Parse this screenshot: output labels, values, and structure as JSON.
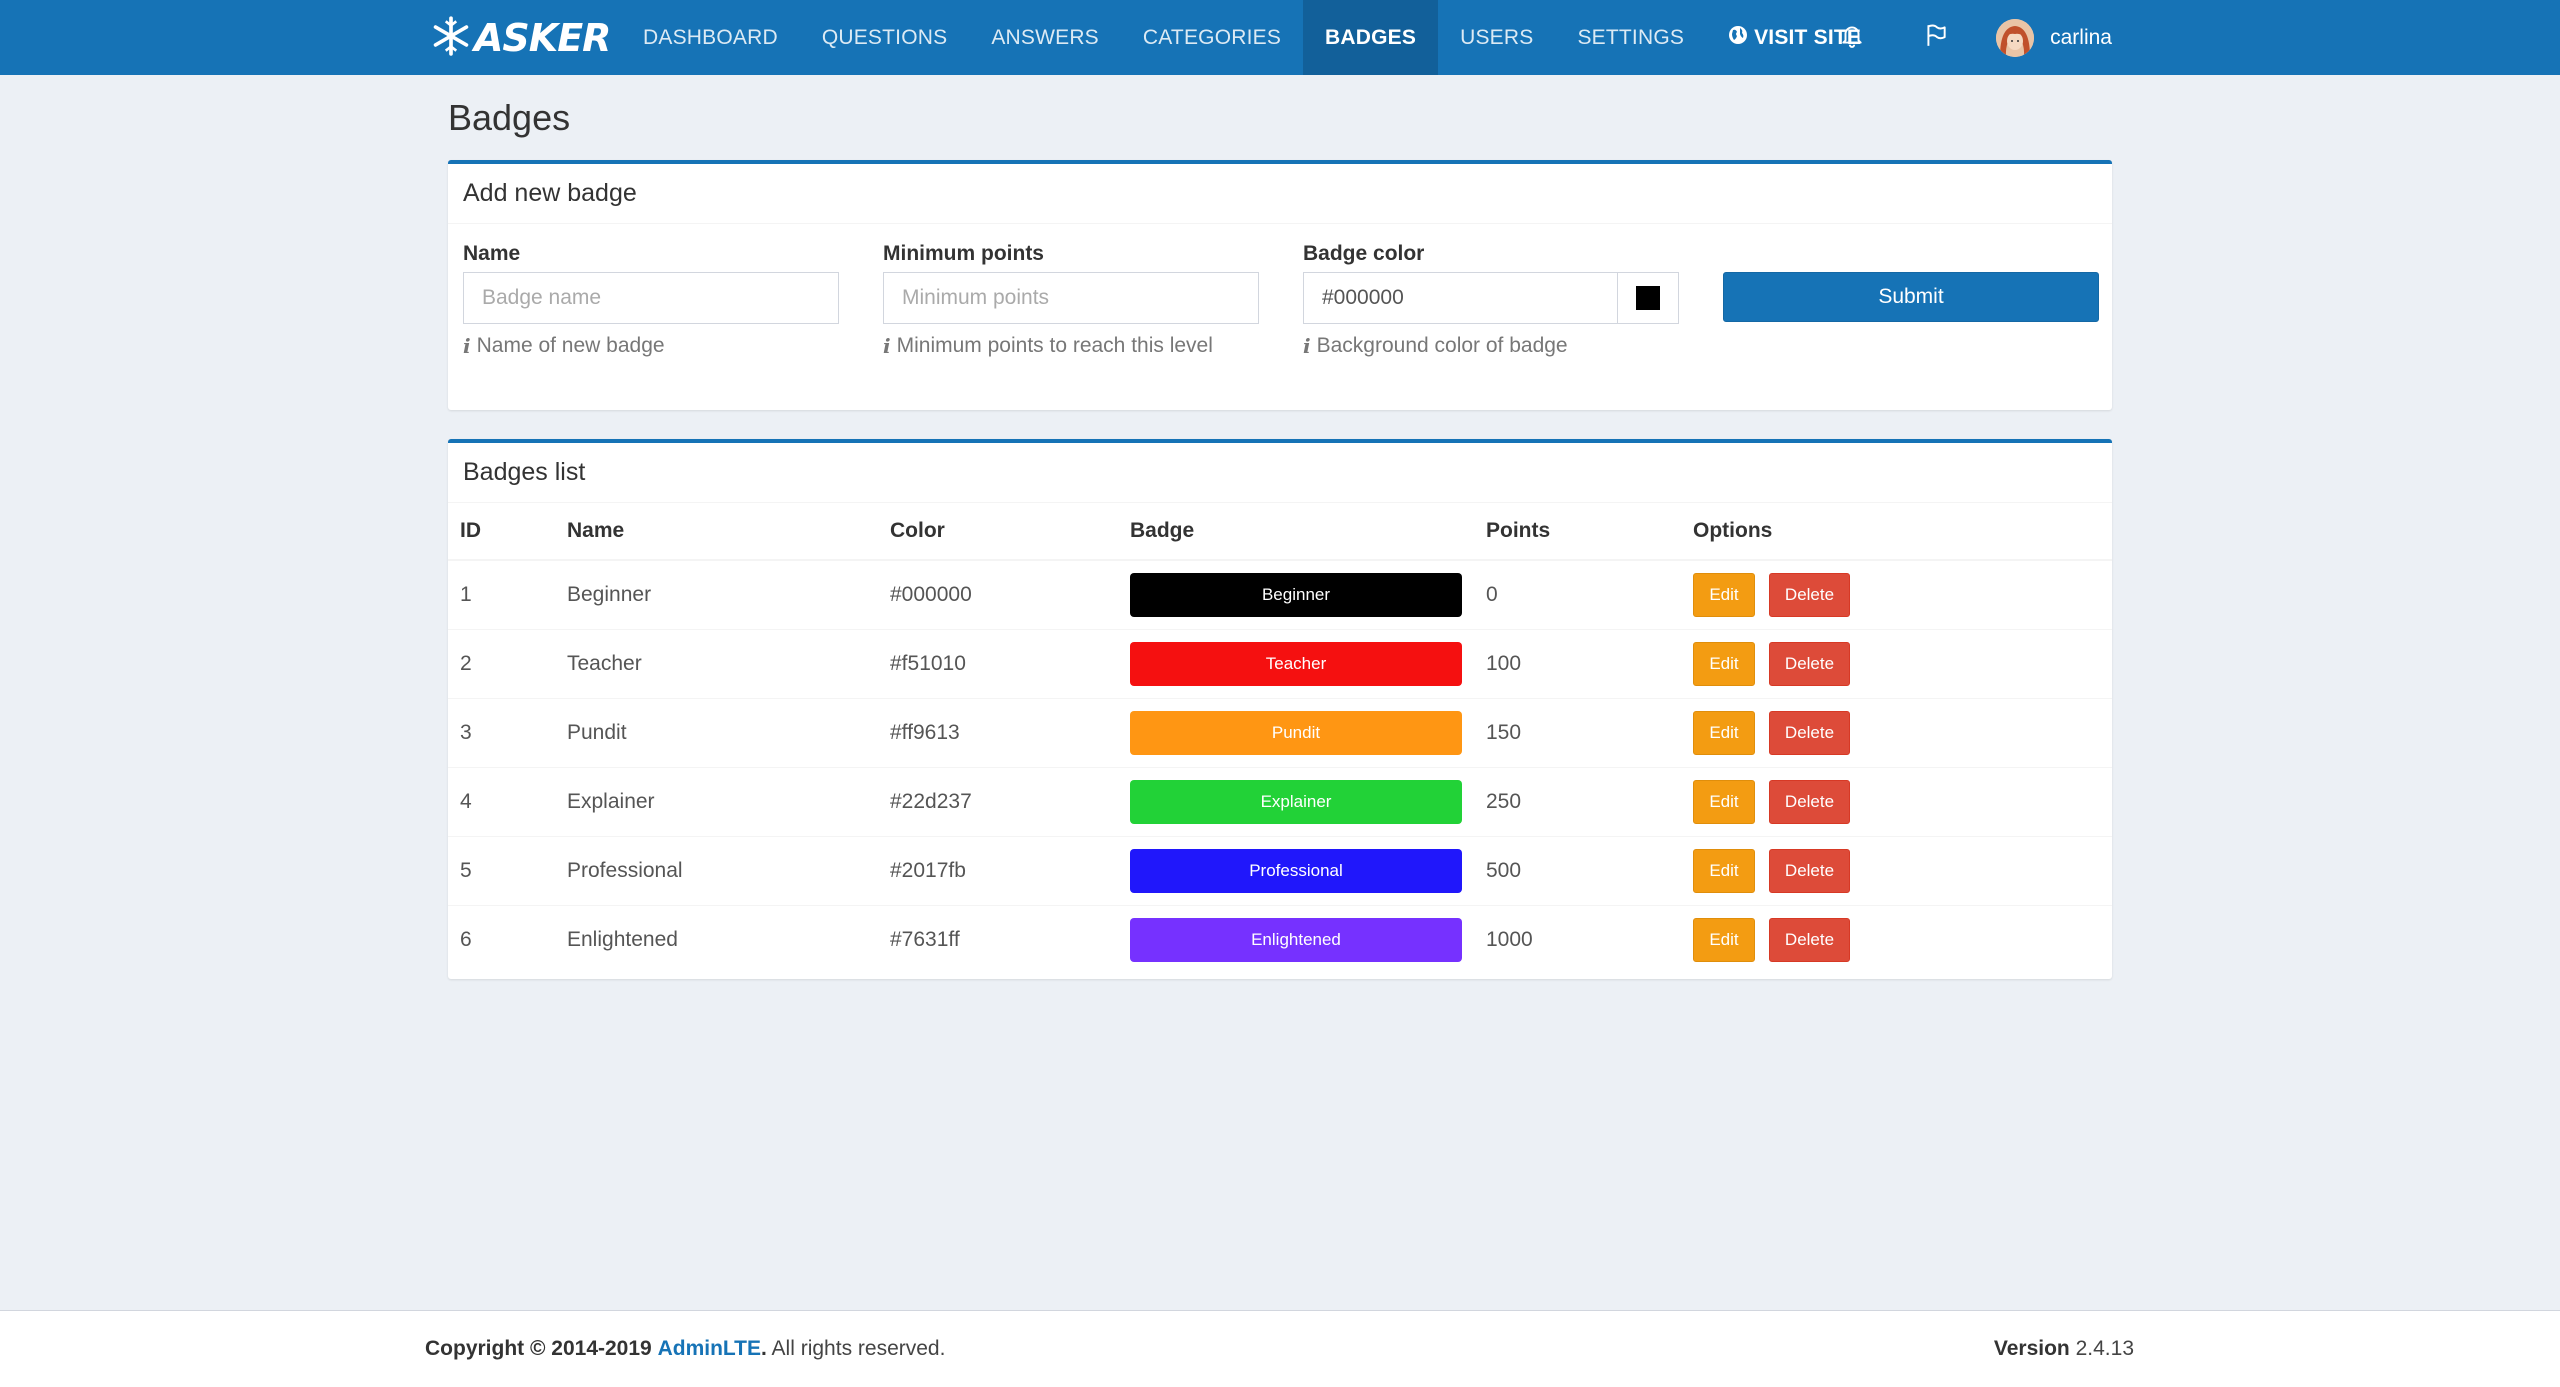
{
  "brand": {
    "name": "ASKER",
    "logo_icon": "snowflake-icon"
  },
  "nav": {
    "items": [
      {
        "label": "DASHBOARD",
        "active": false
      },
      {
        "label": "QUESTIONS",
        "active": false
      },
      {
        "label": "ANSWERS",
        "active": false
      },
      {
        "label": "CATEGORIES",
        "active": false
      },
      {
        "label": "BADGES",
        "active": true
      },
      {
        "label": "USERS",
        "active": false
      },
      {
        "label": "SETTINGS",
        "active": false
      }
    ],
    "visit_site": {
      "label": "VISIT SITE",
      "icon": "globe-icon"
    },
    "icons": [
      "bell-icon",
      "flag-icon"
    ],
    "user": {
      "name": "carlina"
    }
  },
  "page": {
    "title": "Badges"
  },
  "form": {
    "title": "Add new badge",
    "name": {
      "label": "Name",
      "placeholder": "Badge name",
      "help": "Name of new badge"
    },
    "min_points": {
      "label": "Minimum points",
      "placeholder": "Minimum points",
      "help": "Minimum points to reach this level"
    },
    "color": {
      "label": "Badge color",
      "value": "#000000",
      "help": "Background color of badge",
      "swatch": "#000000"
    },
    "submit_label": "Submit"
  },
  "list": {
    "title": "Badges list",
    "columns": [
      "ID",
      "Name",
      "Color",
      "Badge",
      "Points",
      "Options"
    ],
    "edit_label": "Edit",
    "delete_label": "Delete",
    "rows": [
      {
        "id": "1",
        "name": "Beginner",
        "color": "#000000",
        "points": "0"
      },
      {
        "id": "2",
        "name": "Teacher",
        "color": "#f51010",
        "points": "100"
      },
      {
        "id": "3",
        "name": "Pundit",
        "color": "#ff9613",
        "points": "150"
      },
      {
        "id": "4",
        "name": "Explainer",
        "color": "#22d237",
        "points": "250"
      },
      {
        "id": "5",
        "name": "Professional",
        "color": "#2017fb",
        "points": "500"
      },
      {
        "id": "6",
        "name": "Enlightened",
        "color": "#7631ff",
        "points": "1000"
      }
    ]
  },
  "footer": {
    "copyright_prefix": "Copyright © 2014-2019",
    "brand": "AdminLTE",
    "suffix": "All rights reserved.",
    "version_label": "Version",
    "version": "2.4.13"
  }
}
